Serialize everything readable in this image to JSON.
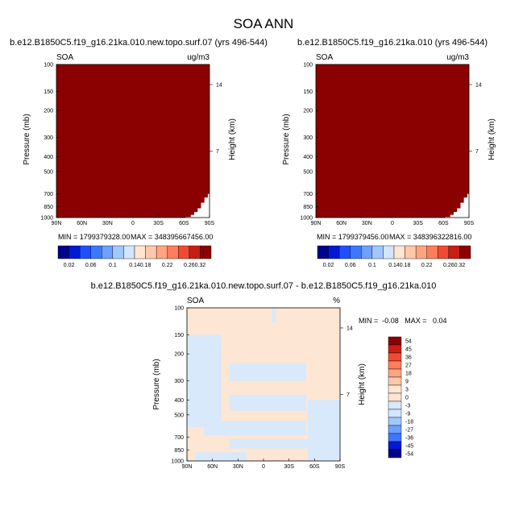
{
  "figure": {
    "title": "SOA ANN"
  },
  "colors": {
    "blue_scale": [
      "#00008c",
      "#0019d2",
      "#1e50ff",
      "#3c78ff",
      "#6ea0ff",
      "#a0c8ff",
      "#d2e6ff"
    ],
    "red_scale": [
      "#ffe6d2",
      "#ffc8aa",
      "#ffa582",
      "#ff7d5a",
      "#f04b32",
      "#c81e14",
      "#8c0000"
    ],
    "neutral_blue": "#d7e9fb",
    "neutral_red": "#fde6d4",
    "field_red": "#8b0000"
  },
  "chart_data": [
    {
      "type": "heatmap",
      "title": "b.e12.B1850C5.f19_g16.21ka.010.new.topo.surf.07 (yrs 496-544)",
      "variable": "SOA",
      "units": "ug/m3",
      "ylabel": "Pressure (mb)",
      "ylabel_right": "Height (km)",
      "x_ticks": [
        "90N",
        "60N",
        "30N",
        "0",
        "30S",
        "60S",
        "90S"
      ],
      "y_ticks": [
        "100",
        "150",
        "200",
        "300",
        "400",
        "500",
        "700",
        "850",
        "1000"
      ],
      "y_ticks_right": [
        "14",
        "7"
      ],
      "min_text": "MIN = 1799379328.00",
      "max_text": "MAX = 348395667456.00",
      "colorbar_labels": [
        "0.02",
        "0.06",
        "0.1",
        "0.14",
        "0.18",
        "0.22",
        "0.26",
        "0.32"
      ],
      "pressure_range": [
        100,
        1000
      ],
      "lat_range": [
        90,
        -90
      ],
      "fill": "saturated above 0.32 everywhere above the surface"
    },
    {
      "type": "heatmap",
      "title": "b.e12.B1850C5.f19_g16.21ka.010 (yrs 496-544)",
      "variable": "SOA",
      "units": "ug/m3",
      "ylabel": "Pressure (mb)",
      "ylabel_right": "Height (km)",
      "x_ticks": [
        "90N",
        "60N",
        "30N",
        "0",
        "30S",
        "60S",
        "90S"
      ],
      "y_ticks": [
        "100",
        "150",
        "200",
        "300",
        "400",
        "500",
        "700",
        "850",
        "1000"
      ],
      "y_ticks_right": [
        "14",
        "7"
      ],
      "min_text": "MIN = 1799379456.00",
      "max_text": "MAX = 348396322816.00",
      "colorbar_labels": [
        "0.02",
        "0.06",
        "0.1",
        "0.14",
        "0.18",
        "0.22",
        "0.26",
        "0.32"
      ],
      "pressure_range": [
        100,
        1000
      ],
      "lat_range": [
        90,
        -90
      ],
      "fill": "saturated above 0.32 everywhere above the surface"
    },
    {
      "type": "heatmap",
      "title": "b.e12.B1850C5.f19_g16.21ka.010.new.topo.surf.07 - b.e12.B1850C5.f19_g16.21ka.010",
      "variable": "SOA",
      "units": "%",
      "ylabel": "Pressure (mb)",
      "ylabel_right": "Height (km)",
      "x_ticks": [
        "90N",
        "60N",
        "30N",
        "0",
        "30S",
        "60S",
        "90S"
      ],
      "y_ticks": [
        "100",
        "150",
        "200",
        "300",
        "400",
        "500",
        "700",
        "850",
        "1000"
      ],
      "y_ticks_right": [
        "14",
        "7"
      ],
      "stats_text": "MIN =  -0.08   MAX =   0.04",
      "colorbar_labels": [
        "54",
        "45",
        "36",
        "27",
        "18",
        "9",
        "3",
        "0",
        "-3",
        "-9",
        "-18",
        "-27",
        "-36",
        "-45",
        "-54"
      ],
      "pressure_range": [
        100,
        1000
      ],
      "lat_range": [
        90,
        -90
      ],
      "negative_bands": [
        {
          "from_lat": 90,
          "to_lat": 50,
          "p_top": 150,
          "p_bottom": 600
        },
        {
          "from_lat": 40,
          "to_lat": -50,
          "p_top": 230,
          "p_bottom": 300
        },
        {
          "from_lat": 40,
          "to_lat": -50,
          "p_top": 370,
          "p_bottom": 470
        },
        {
          "from_lat": 70,
          "to_lat": -50,
          "p_top": 550,
          "p_bottom": 680
        },
        {
          "from_lat": 40,
          "to_lat": -60,
          "p_top": 720,
          "p_bottom": 830
        },
        {
          "from_lat": -52,
          "to_lat": -90,
          "p_top": 400,
          "p_bottom": 1000
        },
        {
          "from_lat": 80,
          "to_lat": 20,
          "p_top": 880,
          "p_bottom": 1000
        },
        {
          "from_lat": -10,
          "to_lat": -14,
          "p_top": 100,
          "p_bottom": 125
        }
      ]
    }
  ]
}
